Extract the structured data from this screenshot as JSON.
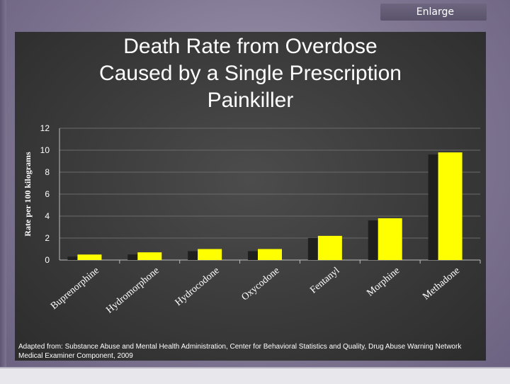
{
  "toolbar": {
    "enlarge_label": "Enlarge"
  },
  "slide": {
    "source_note": "Adapted from: Substance Abuse and Mental Health Administration, Center for Behavioral Statistics and Quality, Drug Abuse Warning Network Medical Examiner Component, 2009"
  },
  "colors": {
    "bar": "#ffff00",
    "background": "#3a3a3a",
    "text": "#ffffff"
  },
  "chart_data": {
    "type": "bar",
    "title": "Death Rate from Overdose\nCaused by a Single Prescription\nPainkiller",
    "xlabel": "",
    "ylabel": "Rate per 100 kilograms",
    "ylim": [
      0,
      12
    ],
    "yticks": [
      "0",
      "2",
      "4",
      "6",
      "8",
      "10",
      "12"
    ],
    "grid": true,
    "categories": [
      "Buprenorphine",
      "Hydromorphone",
      "Hydrocodone",
      "Oxycodone",
      "Fentanyl",
      "Morphine",
      "Methadone"
    ],
    "values": [
      0.5,
      0.7,
      1.0,
      1.0,
      2.2,
      3.8,
      9.8
    ]
  }
}
